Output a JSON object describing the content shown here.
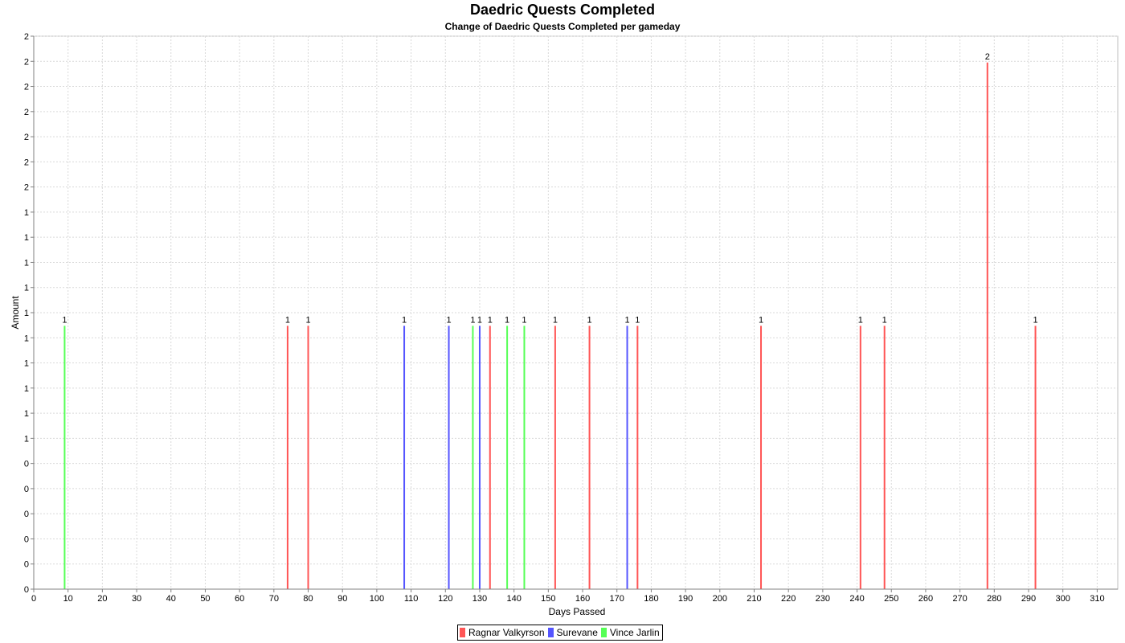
{
  "chart_data": {
    "type": "bar",
    "title": "Daedric Quests Completed",
    "subtitle": "Change of Daedric Quests Completed per gameday",
    "xlabel": "Days Passed",
    "ylabel": "Amount",
    "xlim": [
      0,
      316
    ],
    "ylim": [
      0,
      2.1
    ],
    "x_tick_step": 10,
    "y_tick_labels": [
      "0",
      "0",
      "0",
      "0",
      "0",
      "0",
      "1",
      "1",
      "1",
      "1",
      "1",
      "1",
      "1",
      "1",
      "1",
      "1",
      "2",
      "2",
      "2",
      "2",
      "2",
      "2",
      "2"
    ],
    "grid": true,
    "legend_position": "bottom-center",
    "series": [
      {
        "name": "Ragnar Valkyrson",
        "color": "#ff5555",
        "x": [
          74,
          80,
          133,
          152,
          162,
          176,
          212,
          241,
          248,
          278,
          292
        ],
        "values": [
          1,
          1,
          1,
          1,
          1,
          1,
          1,
          1,
          1,
          2,
          1
        ]
      },
      {
        "name": "Surevane",
        "color": "#5555ff",
        "x": [
          108,
          121,
          130,
          173
        ],
        "values": [
          1,
          1,
          1,
          1
        ]
      },
      {
        "name": "Vince Jarlin",
        "color": "#55ff55",
        "x": [
          9,
          128,
          138,
          143
        ],
        "values": [
          1,
          1,
          1,
          1
        ]
      }
    ]
  }
}
